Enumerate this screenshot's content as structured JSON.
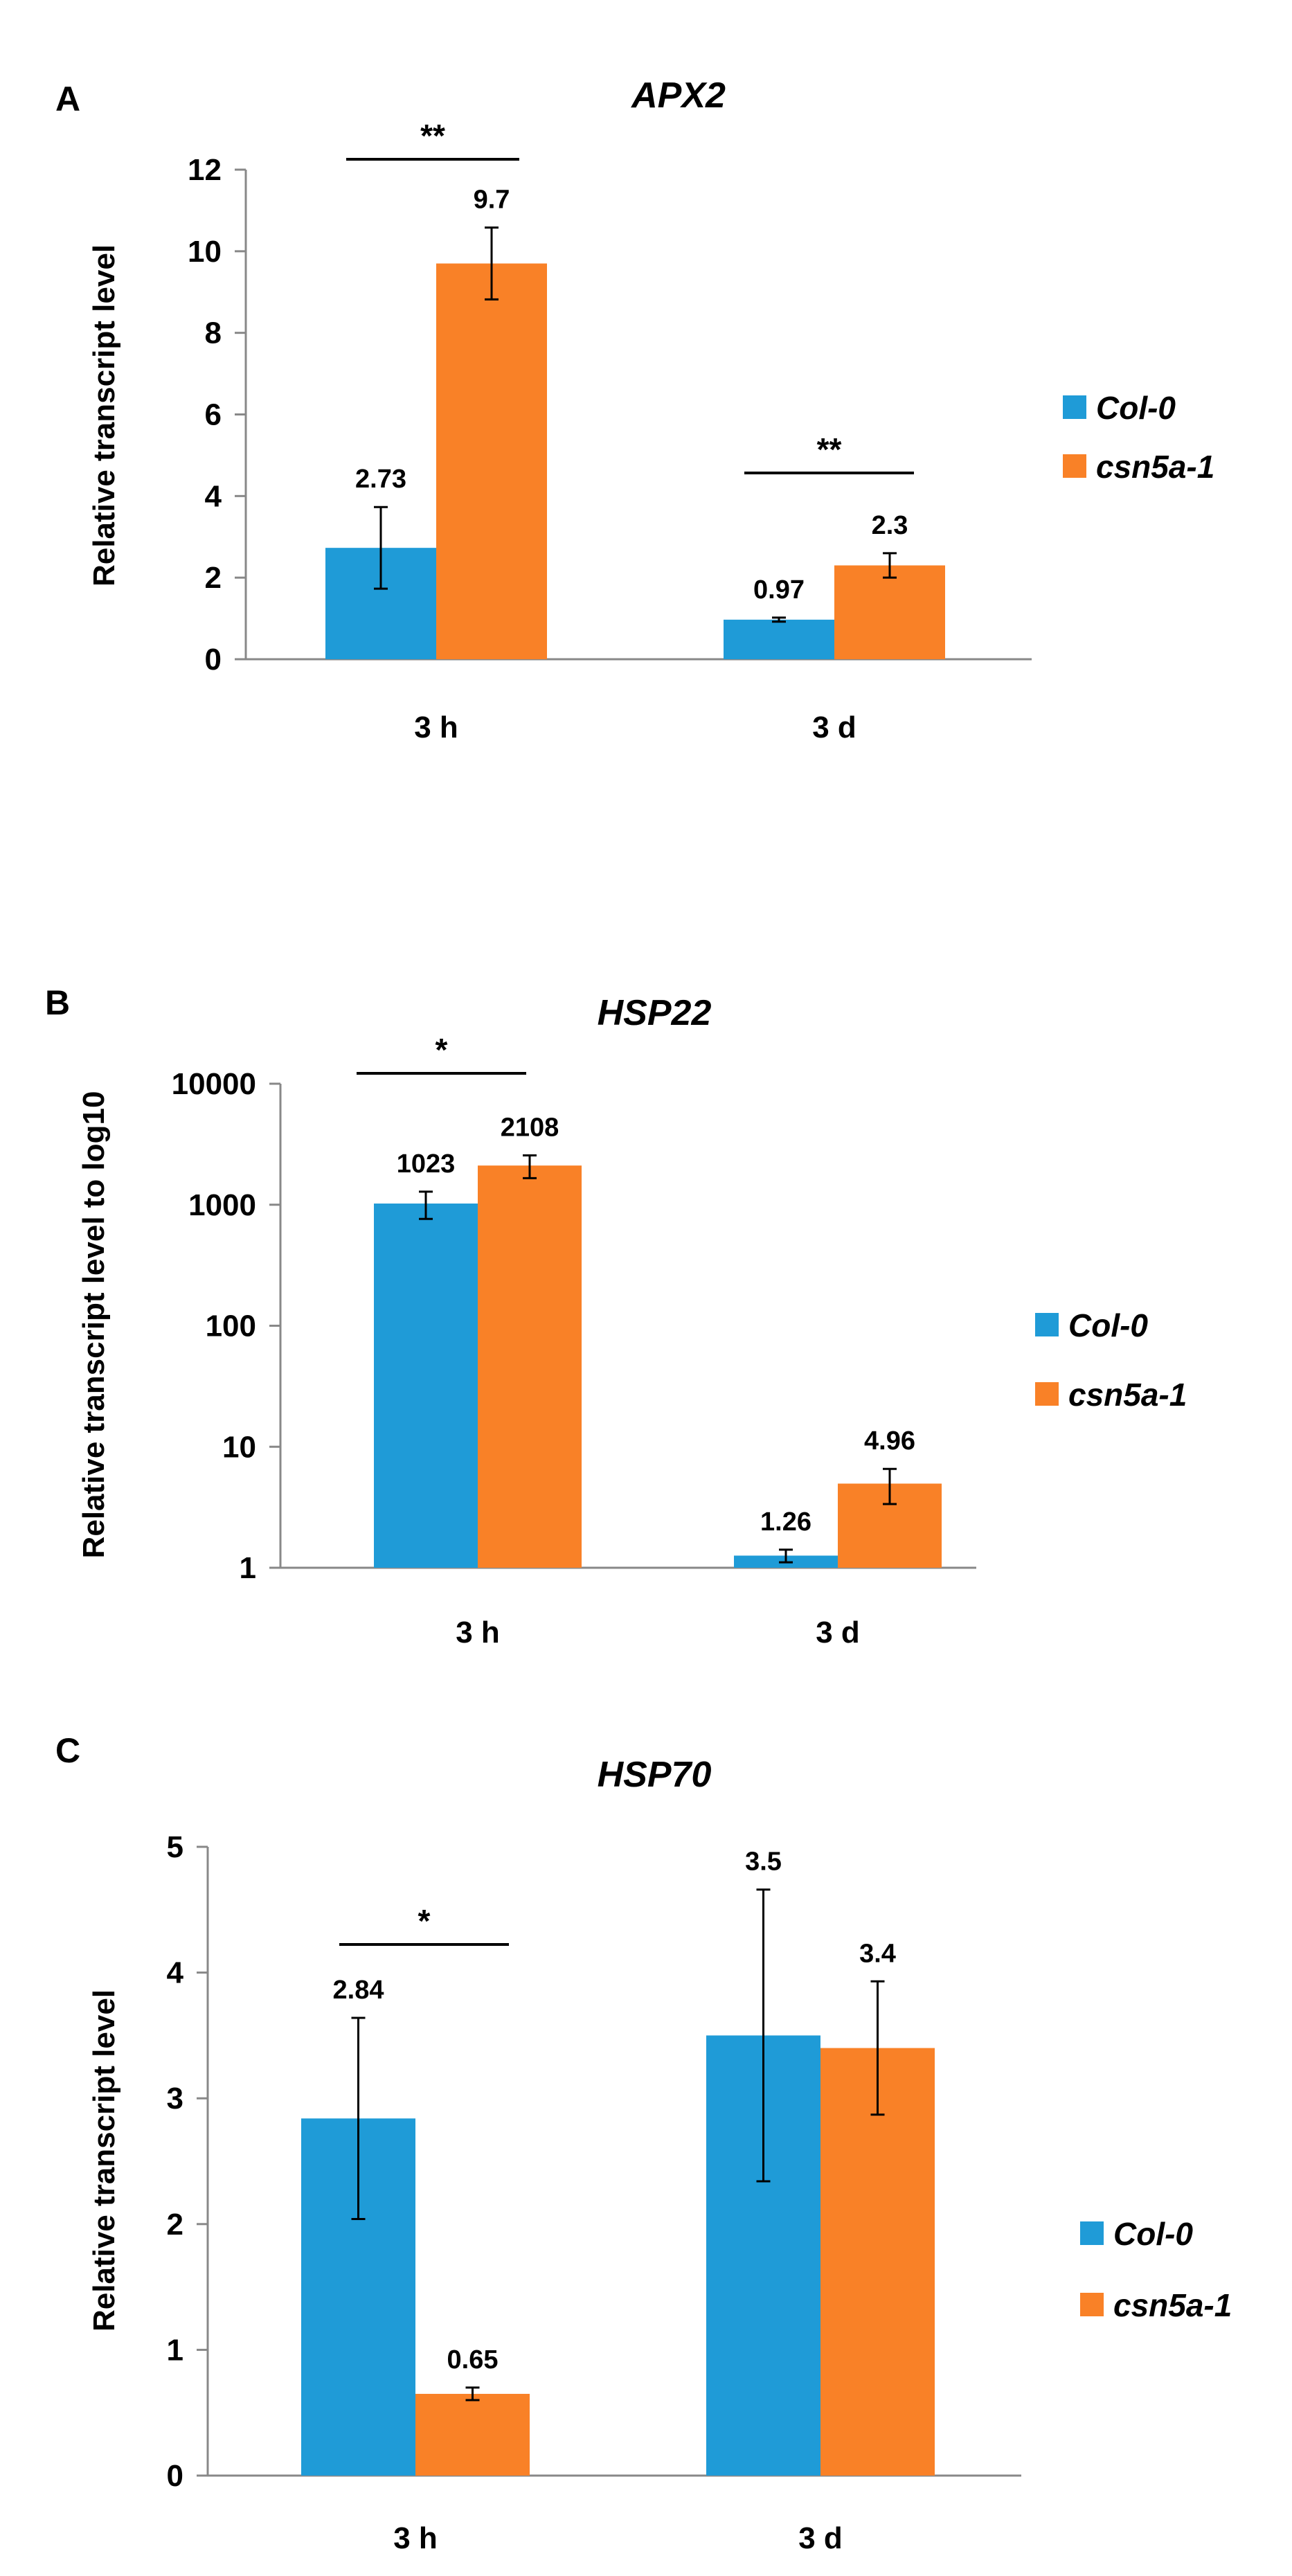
{
  "colors": {
    "col0": "#1F9BD7",
    "csn": "#F98127",
    "axis": "#888888",
    "ink": "#000000"
  },
  "chart_data": [
    {
      "panel": "A",
      "type": "bar",
      "title": "APX2",
      "ylabel": "Relative transcript level",
      "yscale": "linear",
      "ylim": [
        0,
        12
      ],
      "yticks": [
        "0",
        "2",
        "4",
        "6",
        "8",
        "10",
        "12"
      ],
      "categories": [
        "3 h",
        "3 d"
      ],
      "series": [
        {
          "name": "Col-0",
          "values": [
            2.73,
            0.97
          ],
          "errors": [
            1.0,
            0.05
          ],
          "labels": [
            "2.73",
            "0.97"
          ]
        },
        {
          "name": "csn5a-1",
          "values": [
            9.7,
            2.3
          ],
          "errors": [
            0.88,
            0.3
          ],
          "labels": [
            "9.7",
            "2.3"
          ]
        }
      ],
      "significance": [
        "**",
        "**"
      ]
    },
    {
      "panel": "B",
      "type": "bar",
      "title": "HSP22",
      "ylabel": "Relative transcript level to log10",
      "yscale": "log10",
      "ylim": [
        1,
        10000
      ],
      "yticks": [
        "1",
        "10",
        "100",
        "1000",
        "10000"
      ],
      "categories": [
        "3 h",
        "3 d"
      ],
      "series": [
        {
          "name": "Col-0",
          "values": [
            1023,
            1.26
          ],
          "errors": [
            260,
            0.15
          ],
          "labels": [
            "1023",
            "1.26"
          ]
        },
        {
          "name": "csn5a-1",
          "values": [
            2108,
            4.96
          ],
          "errors": [
            450,
            1.6
          ],
          "labels": [
            "2108",
            "4.96"
          ]
        }
      ],
      "significance": [
        "*",
        ""
      ]
    },
    {
      "panel": "C",
      "type": "bar",
      "title": "HSP70",
      "ylabel": "Relative transcript level",
      "yscale": "linear",
      "ylim": [
        0,
        5
      ],
      "yticks": [
        "0",
        "1",
        "2",
        "3",
        "4",
        "5"
      ],
      "categories": [
        "3 h",
        "3 d"
      ],
      "series": [
        {
          "name": "Col-0",
          "values": [
            2.84,
            3.5
          ],
          "errors": [
            0.8,
            1.16
          ],
          "labels": [
            "2.84",
            "3.5"
          ]
        },
        {
          "name": "csn5a-1",
          "values": [
            0.65,
            3.4
          ],
          "errors": [
            0.05,
            0.53
          ],
          "labels": [
            "0.65",
            "3.4"
          ]
        }
      ],
      "significance": [
        "*",
        ""
      ]
    }
  ]
}
